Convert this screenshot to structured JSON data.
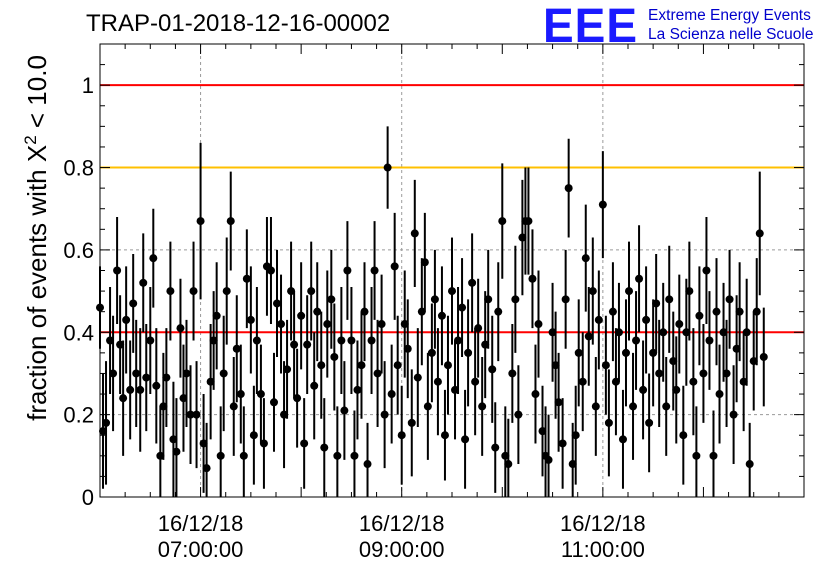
{
  "header": {
    "title": "TRAP-01-2018-12-16-00002",
    "logo_mark": "EEE",
    "logo_line1": "Extreme Energy Events",
    "logo_line2": "La Scienza nelle Scuole"
  },
  "chart_data": {
    "type": "scatter",
    "title": "TRAP-01-2018-12-16-00002",
    "ylabel": {
      "prefix": "fraction of events with X",
      "sup": "2",
      "suffix": " < 10.0"
    },
    "ylim": [
      0,
      1.1
    ],
    "yticks": [
      0,
      0.2,
      0.4,
      0.6,
      0.8,
      1
    ],
    "ytick_labels": [
      "0",
      "0.2",
      "0.4",
      "0.6",
      "0.8",
      "1"
    ],
    "xlim_hours": [
      6.0,
      13.0
    ],
    "xticks": [
      {
        "hour": 7,
        "line1": "16/12/18",
        "line2": "07:00:00"
      },
      {
        "hour": 9,
        "line1": "16/12/18",
        "line2": "09:00:00"
      },
      {
        "hour": 11,
        "line1": "16/12/18",
        "line2": "11:00:00"
      }
    ],
    "grid": true,
    "reference_lines": [
      {
        "y": 1.0,
        "color": "#ff0000"
      },
      {
        "y": 0.8,
        "color": "#ffc000"
      },
      {
        "y": 0.4,
        "color": "#ff0000"
      }
    ],
    "marker_color": "#000000",
    "series": [
      {
        "points": [
          [
            6.0,
            0.46,
            0.1
          ],
          [
            6.03,
            0.16,
            0.14
          ],
          [
            6.06,
            0.18,
            0.15
          ],
          [
            6.1,
            0.38,
            0.13
          ],
          [
            6.13,
            0.3,
            0.14
          ],
          [
            6.17,
            0.55,
            0.13
          ],
          [
            6.2,
            0.37,
            0.12
          ],
          [
            6.23,
            0.24,
            0.14
          ],
          [
            6.26,
            0.43,
            0.13
          ],
          [
            6.3,
            0.26,
            0.12
          ],
          [
            6.33,
            0.47,
            0.12
          ],
          [
            6.36,
            0.3,
            0.13
          ],
          [
            6.4,
            0.26,
            0.15
          ],
          [
            6.43,
            0.52,
            0.12
          ],
          [
            6.46,
            0.29,
            0.13
          ],
          [
            6.5,
            0.38,
            0.13
          ],
          [
            6.53,
            0.58,
            0.12
          ],
          [
            6.56,
            0.27,
            0.14
          ],
          [
            6.6,
            0.1,
            0.12
          ],
          [
            6.63,
            0.22,
            0.13
          ],
          [
            6.66,
            0.29,
            0.12
          ],
          [
            6.7,
            0.5,
            0.12
          ],
          [
            6.73,
            0.14,
            0.14
          ],
          [
            6.76,
            0.11,
            0.13
          ],
          [
            6.8,
            0.41,
            0.12
          ],
          [
            6.83,
            0.24,
            0.13
          ],
          [
            6.86,
            0.3,
            0.13
          ],
          [
            6.9,
            0.2,
            0.12
          ],
          [
            6.93,
            0.5,
            0.12
          ],
          [
            6.96,
            0.2,
            0.13
          ],
          [
            7.0,
            0.67,
            0.19
          ],
          [
            7.03,
            0.13,
            0.12
          ],
          [
            7.06,
            0.07,
            0.11
          ],
          [
            7.1,
            0.28,
            0.14
          ],
          [
            7.13,
            0.38,
            0.12
          ],
          [
            7.16,
            0.44,
            0.13
          ],
          [
            7.2,
            0.1,
            0.12
          ],
          [
            7.23,
            0.3,
            0.14
          ],
          [
            7.26,
            0.5,
            0.13
          ],
          [
            7.3,
            0.67,
            0.12
          ],
          [
            7.33,
            0.22,
            0.12
          ],
          [
            7.36,
            0.36,
            0.13
          ],
          [
            7.4,
            0.25,
            0.12
          ],
          [
            7.43,
            0.1,
            0.12
          ],
          [
            7.46,
            0.53,
            0.12
          ],
          [
            7.5,
            0.43,
            0.13
          ],
          [
            7.53,
            0.15,
            0.12
          ],
          [
            7.56,
            0.38,
            0.13
          ],
          [
            7.6,
            0.25,
            0.12
          ],
          [
            7.63,
            0.13,
            0.11
          ],
          [
            7.66,
            0.56,
            0.12
          ],
          [
            7.7,
            0.55,
            0.13
          ],
          [
            7.73,
            0.23,
            0.12
          ],
          [
            7.76,
            0.47,
            0.13
          ],
          [
            7.8,
            0.42,
            0.12
          ],
          [
            7.83,
            0.2,
            0.13
          ],
          [
            7.86,
            0.31,
            0.12
          ],
          [
            7.9,
            0.5,
            0.12
          ],
          [
            7.93,
            0.37,
            0.13
          ],
          [
            7.96,
            0.24,
            0.12
          ],
          [
            8.0,
            0.44,
            0.13
          ],
          [
            8.03,
            0.13,
            0.11
          ],
          [
            8.06,
            0.37,
            0.12
          ],
          [
            8.1,
            0.5,
            0.12
          ],
          [
            8.13,
            0.27,
            0.13
          ],
          [
            8.16,
            0.45,
            0.12
          ],
          [
            8.2,
            0.32,
            0.13
          ],
          [
            8.23,
            0.12,
            0.12
          ],
          [
            8.26,
            0.42,
            0.13
          ],
          [
            8.3,
            0.48,
            0.12
          ],
          [
            8.33,
            0.34,
            0.13
          ],
          [
            8.36,
            0.1,
            0.12
          ],
          [
            8.4,
            0.38,
            0.13
          ],
          [
            8.43,
            0.21,
            0.12
          ],
          [
            8.46,
            0.55,
            0.12
          ],
          [
            8.5,
            0.38,
            0.13
          ],
          [
            8.53,
            0.1,
            0.11
          ],
          [
            8.56,
            0.26,
            0.12
          ],
          [
            8.6,
            0.32,
            0.13
          ],
          [
            8.63,
            0.45,
            0.12
          ],
          [
            8.66,
            0.08,
            0.1
          ],
          [
            8.7,
            0.38,
            0.13
          ],
          [
            8.73,
            0.55,
            0.12
          ],
          [
            8.76,
            0.3,
            0.13
          ],
          [
            8.8,
            0.42,
            0.12
          ],
          [
            8.83,
            0.2,
            0.13
          ],
          [
            8.86,
            0.8,
            0.1
          ],
          [
            8.9,
            0.25,
            0.12
          ],
          [
            8.93,
            0.56,
            0.13
          ],
          [
            8.96,
            0.32,
            0.12
          ],
          [
            9.0,
            0.15,
            0.12
          ],
          [
            9.03,
            0.42,
            0.13
          ],
          [
            9.06,
            0.36,
            0.12
          ],
          [
            9.1,
            0.18,
            0.13
          ],
          [
            9.13,
            0.64,
            0.13
          ],
          [
            9.16,
            0.29,
            0.12
          ],
          [
            9.2,
            0.45,
            0.13
          ],
          [
            9.23,
            0.57,
            0.12
          ],
          [
            9.26,
            0.22,
            0.13
          ],
          [
            9.3,
            0.35,
            0.12
          ],
          [
            9.33,
            0.48,
            0.12
          ],
          [
            9.36,
            0.28,
            0.13
          ],
          [
            9.4,
            0.44,
            0.12
          ],
          [
            9.43,
            0.15,
            0.11
          ],
          [
            9.46,
            0.32,
            0.12
          ],
          [
            9.5,
            0.5,
            0.13
          ],
          [
            9.53,
            0.26,
            0.12
          ],
          [
            9.56,
            0.38,
            0.13
          ],
          [
            9.6,
            0.46,
            0.12
          ],
          [
            9.63,
            0.14,
            0.12
          ],
          [
            9.66,
            0.35,
            0.13
          ],
          [
            9.7,
            0.52,
            0.12
          ],
          [
            9.73,
            0.28,
            0.13
          ],
          [
            9.76,
            0.41,
            0.12
          ],
          [
            9.8,
            0.22,
            0.12
          ],
          [
            9.83,
            0.37,
            0.13
          ],
          [
            9.86,
            0.48,
            0.12
          ],
          [
            9.9,
            0.31,
            0.13
          ],
          [
            9.93,
            0.12,
            0.11
          ],
          [
            9.96,
            0.45,
            0.12
          ],
          [
            10.0,
            0.67,
            0.14
          ],
          [
            10.03,
            0.1,
            0.12
          ],
          [
            10.06,
            0.08,
            0.11
          ],
          [
            10.1,
            0.3,
            0.12
          ],
          [
            10.13,
            0.48,
            0.13
          ],
          [
            10.16,
            0.2,
            0.12
          ],
          [
            10.2,
            0.63,
            0.14
          ],
          [
            10.23,
            0.67,
            0.13
          ],
          [
            10.26,
            0.67,
            0.13
          ],
          [
            10.3,
            0.53,
            0.12
          ],
          [
            10.33,
            0.25,
            0.12
          ],
          [
            10.36,
            0.42,
            0.13
          ],
          [
            10.4,
            0.16,
            0.11
          ],
          [
            10.43,
            0.1,
            0.12
          ],
          [
            10.46,
            0.09,
            0.11
          ],
          [
            10.5,
            0.4,
            0.12
          ],
          [
            10.53,
            0.32,
            0.13
          ],
          [
            10.56,
            0.23,
            0.12
          ],
          [
            10.6,
            0.13,
            0.11
          ],
          [
            10.63,
            0.48,
            0.12
          ],
          [
            10.66,
            0.75,
            0.12
          ],
          [
            10.7,
            0.08,
            0.1
          ],
          [
            10.73,
            0.15,
            0.12
          ],
          [
            10.76,
            0.35,
            0.13
          ],
          [
            10.8,
            0.28,
            0.12
          ],
          [
            10.83,
            0.58,
            0.13
          ],
          [
            10.86,
            0.39,
            0.12
          ],
          [
            10.9,
            0.5,
            0.13
          ],
          [
            10.93,
            0.22,
            0.12
          ],
          [
            10.96,
            0.43,
            0.12
          ],
          [
            11.0,
            0.71,
            0.13
          ],
          [
            11.03,
            0.32,
            0.12
          ],
          [
            11.06,
            0.18,
            0.13
          ],
          [
            11.1,
            0.45,
            0.12
          ],
          [
            11.13,
            0.28,
            0.13
          ],
          [
            11.16,
            0.4,
            0.12
          ],
          [
            11.2,
            0.14,
            0.12
          ],
          [
            11.23,
            0.35,
            0.13
          ],
          [
            11.26,
            0.5,
            0.12
          ],
          [
            11.3,
            0.22,
            0.13
          ],
          [
            11.33,
            0.38,
            0.12
          ],
          [
            11.36,
            0.53,
            0.13
          ],
          [
            11.4,
            0.26,
            0.12
          ],
          [
            11.43,
            0.43,
            0.13
          ],
          [
            11.46,
            0.18,
            0.12
          ],
          [
            11.5,
            0.35,
            0.13
          ],
          [
            11.53,
            0.47,
            0.12
          ],
          [
            11.56,
            0.3,
            0.13
          ],
          [
            11.6,
            0.4,
            0.12
          ],
          [
            11.63,
            0.22,
            0.12
          ],
          [
            11.66,
            0.48,
            0.13
          ],
          [
            11.7,
            0.33,
            0.12
          ],
          [
            11.73,
            0.26,
            0.13
          ],
          [
            11.76,
            0.42,
            0.12
          ],
          [
            11.8,
            0.15,
            0.12
          ],
          [
            11.83,
            0.4,
            0.13
          ],
          [
            11.86,
            0.5,
            0.12
          ],
          [
            11.9,
            0.28,
            0.13
          ],
          [
            11.93,
            0.1,
            0.12
          ],
          [
            11.96,
            0.44,
            0.12
          ],
          [
            12.0,
            0.3,
            0.12
          ],
          [
            12.03,
            0.55,
            0.13
          ],
          [
            12.06,
            0.38,
            0.12
          ],
          [
            12.1,
            0.1,
            0.11
          ],
          [
            12.13,
            0.45,
            0.13
          ],
          [
            12.16,
            0.25,
            0.12
          ],
          [
            12.2,
            0.4,
            0.12
          ],
          [
            12.23,
            0.3,
            0.13
          ],
          [
            12.26,
            0.48,
            0.12
          ],
          [
            12.3,
            0.2,
            0.12
          ],
          [
            12.33,
            0.36,
            0.13
          ],
          [
            12.36,
            0.45,
            0.12
          ],
          [
            12.4,
            0.28,
            0.12
          ],
          [
            12.43,
            0.4,
            0.13
          ],
          [
            12.46,
            0.08,
            0.1
          ],
          [
            12.5,
            0.33,
            0.12
          ],
          [
            12.53,
            0.45,
            0.13
          ],
          [
            12.56,
            0.64,
            0.15
          ],
          [
            12.6,
            0.34,
            0.12
          ]
        ]
      }
    ]
  }
}
